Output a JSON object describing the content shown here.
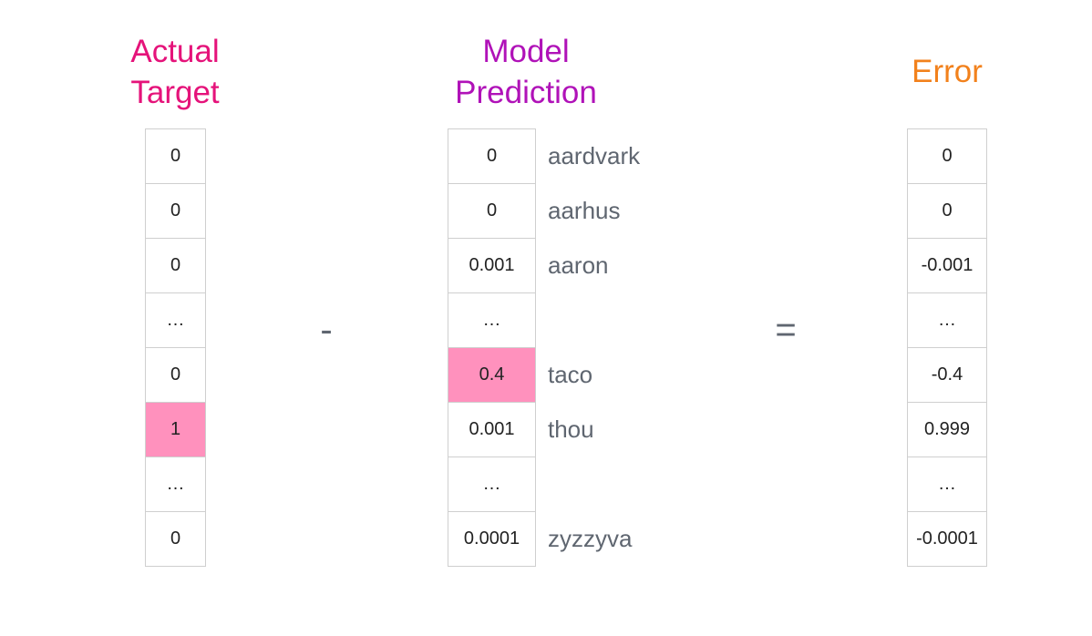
{
  "headings": {
    "actual": {
      "line1": "Actual",
      "line2": "Target",
      "color": "#e5137a"
    },
    "model": {
      "line1": "Model",
      "line2": "Prediction",
      "color": "#b012b8"
    },
    "error": {
      "text": "Error",
      "color": "#f2811c"
    }
  },
  "operators": {
    "minus": "-",
    "equals": "="
  },
  "highlight_color": "#ff91bd",
  "actual_target": [
    "0",
    "0",
    "0",
    "…",
    "0",
    "1",
    "…",
    "0"
  ],
  "model_prediction": [
    "0",
    "0",
    "0.001",
    "…",
    "0.4",
    "0.001",
    "…",
    "0.0001"
  ],
  "vocabulary": [
    "aardvark",
    "aarhus",
    "aaron",
    "",
    "taco",
    "thou",
    "",
    "zyzzyva"
  ],
  "error": [
    "0",
    "0",
    "-0.001",
    "…",
    "-0.4",
    "0.999",
    "…",
    "-0.0001"
  ],
  "highlights": {
    "actual_target": 5,
    "model_prediction": 4
  }
}
